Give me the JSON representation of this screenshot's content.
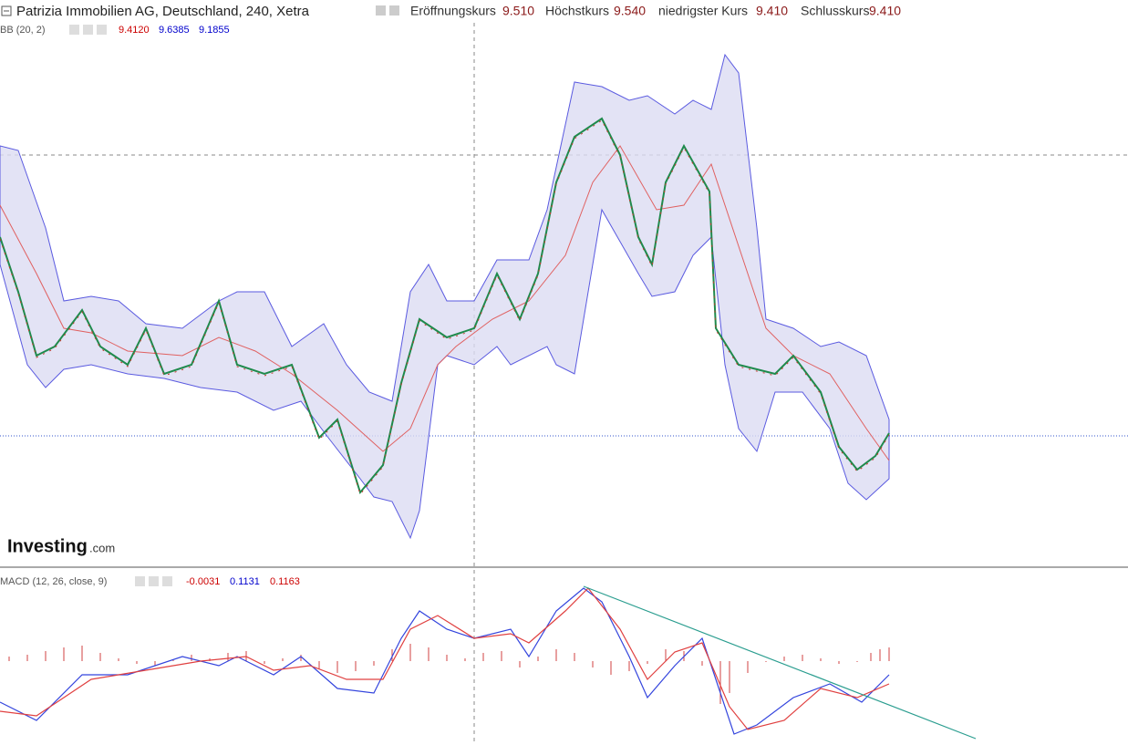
{
  "header": {
    "title": "Patrizia Immobilien AG, Deutschland, 240, Xetra",
    "quotes": [
      {
        "label": "Eröffnungskurs",
        "value": "9.510"
      },
      {
        "label": "Höchstkurs",
        "value": "9.540"
      },
      {
        "label": "niedrigster Kurs",
        "value": "9.410"
      },
      {
        "label": "Schlusskurs",
        "value": "9.410"
      }
    ]
  },
  "bb": {
    "label": "BB (20, 2)",
    "values": [
      "9.4120",
      "9.6385",
      "9.1855"
    ]
  },
  "macd": {
    "label": "MACD (12, 26, close, 9)",
    "values": [
      "-0.0031",
      "0.1131",
      "0.1163"
    ]
  },
  "logo": {
    "brand": "Investing",
    "suffix": ".com"
  }
}
